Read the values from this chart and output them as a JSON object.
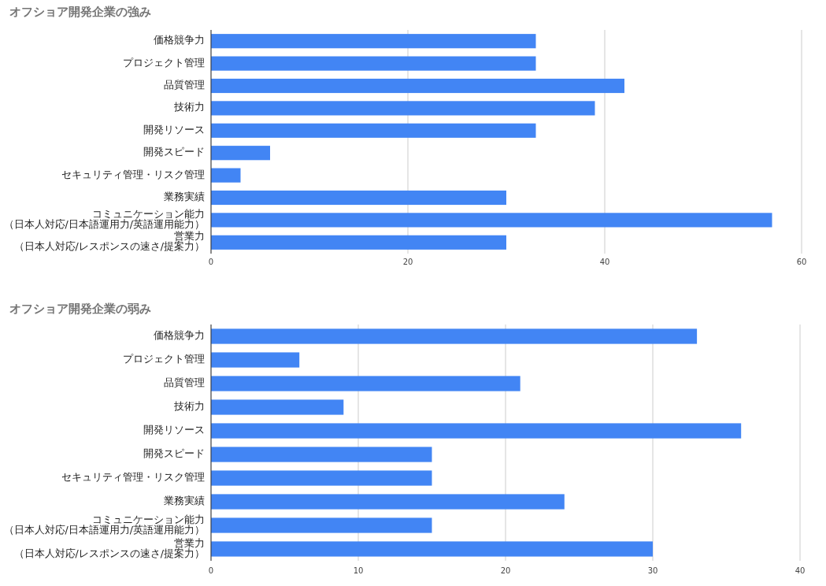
{
  "chart_data": [
    {
      "type": "bar",
      "orientation": "horizontal",
      "title": "オフショア開発企業の強み",
      "categories": [
        "価格競争力",
        "プロジェクト管理",
        "品質管理",
        "技術力",
        "開発リソース",
        "開発スピード",
        "セキュリティ管理・リスク管理",
        "業務実績",
        "コミュニケーション能力（日本人対応/日本語運用力/英語運用能力）",
        "営業力（日本人対応/レスポンスの速さ/提案力）"
      ],
      "values": [
        33,
        33,
        42,
        39,
        33,
        6,
        3,
        30,
        57,
        30
      ],
      "color": "#4285f4",
      "xlim": [
        0,
        60
      ],
      "xticks": [
        0,
        20,
        40,
        60
      ],
      "grid": "x"
    },
    {
      "type": "bar",
      "orientation": "horizontal",
      "title": "オフショア開発企業の弱み",
      "categories": [
        "価格競争力",
        "プロジェクト管理",
        "品質管理",
        "技術力",
        "開発リソース",
        "開発スピード",
        "セキュリティ管理・リスク管理",
        "業務実績",
        "コミュニケーション能力（日本人対応/日本語運用力/英語運用能力）",
        "営業力（日本人対応/レスポンスの速さ/提案力）"
      ],
      "values": [
        33,
        6,
        21,
        9,
        36,
        15,
        15,
        24,
        15,
        30
      ],
      "color": "#4285f4",
      "xlim": [
        0,
        40
      ],
      "xticks": [
        0,
        10,
        20,
        30,
        40
      ],
      "grid": "x"
    }
  ]
}
